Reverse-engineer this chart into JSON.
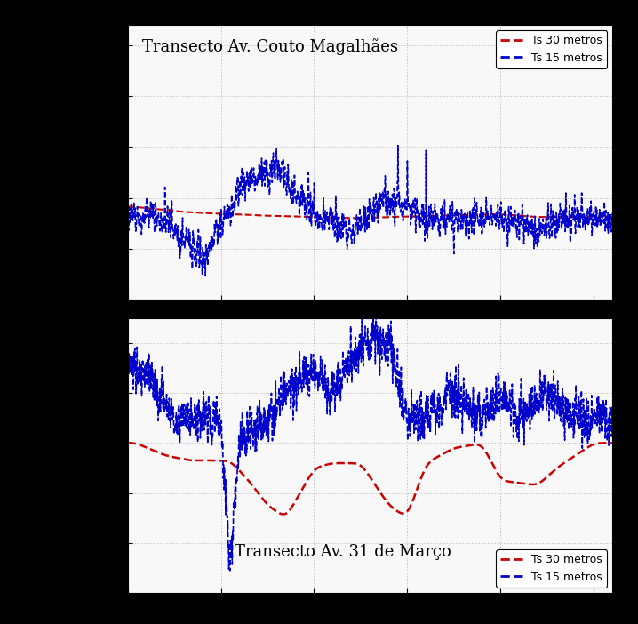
{
  "plot1": {
    "title": "Transecto Av. Couto Magalhães",
    "xlim": [
      0,
      2600
    ],
    "ylim": [
      25,
      52
    ],
    "yticks": [
      25,
      30,
      35,
      40,
      45,
      50
    ],
    "xticks": [
      0,
      500,
      1000,
      1500,
      2000,
      2500
    ],
    "legend_loc": "upper right"
  },
  "plot2": {
    "title": "Transecto Av. 31 de Março",
    "xlim": [
      0,
      5200
    ],
    "ylim": [
      28,
      39
    ],
    "yticks": [
      28,
      30,
      32,
      34,
      36,
      38
    ],
    "xticks": [
      0,
      1000,
      2000,
      3000,
      4000,
      5000
    ],
    "legend_loc": "lower right"
  },
  "line1_color": "#cc0000",
  "line2_color": "#0000cc",
  "line1_label": "Ts 30 metros",
  "line2_label": "Ts 15 metros",
  "background_color": "#ffffff",
  "grid_color": "#aaaaaa"
}
